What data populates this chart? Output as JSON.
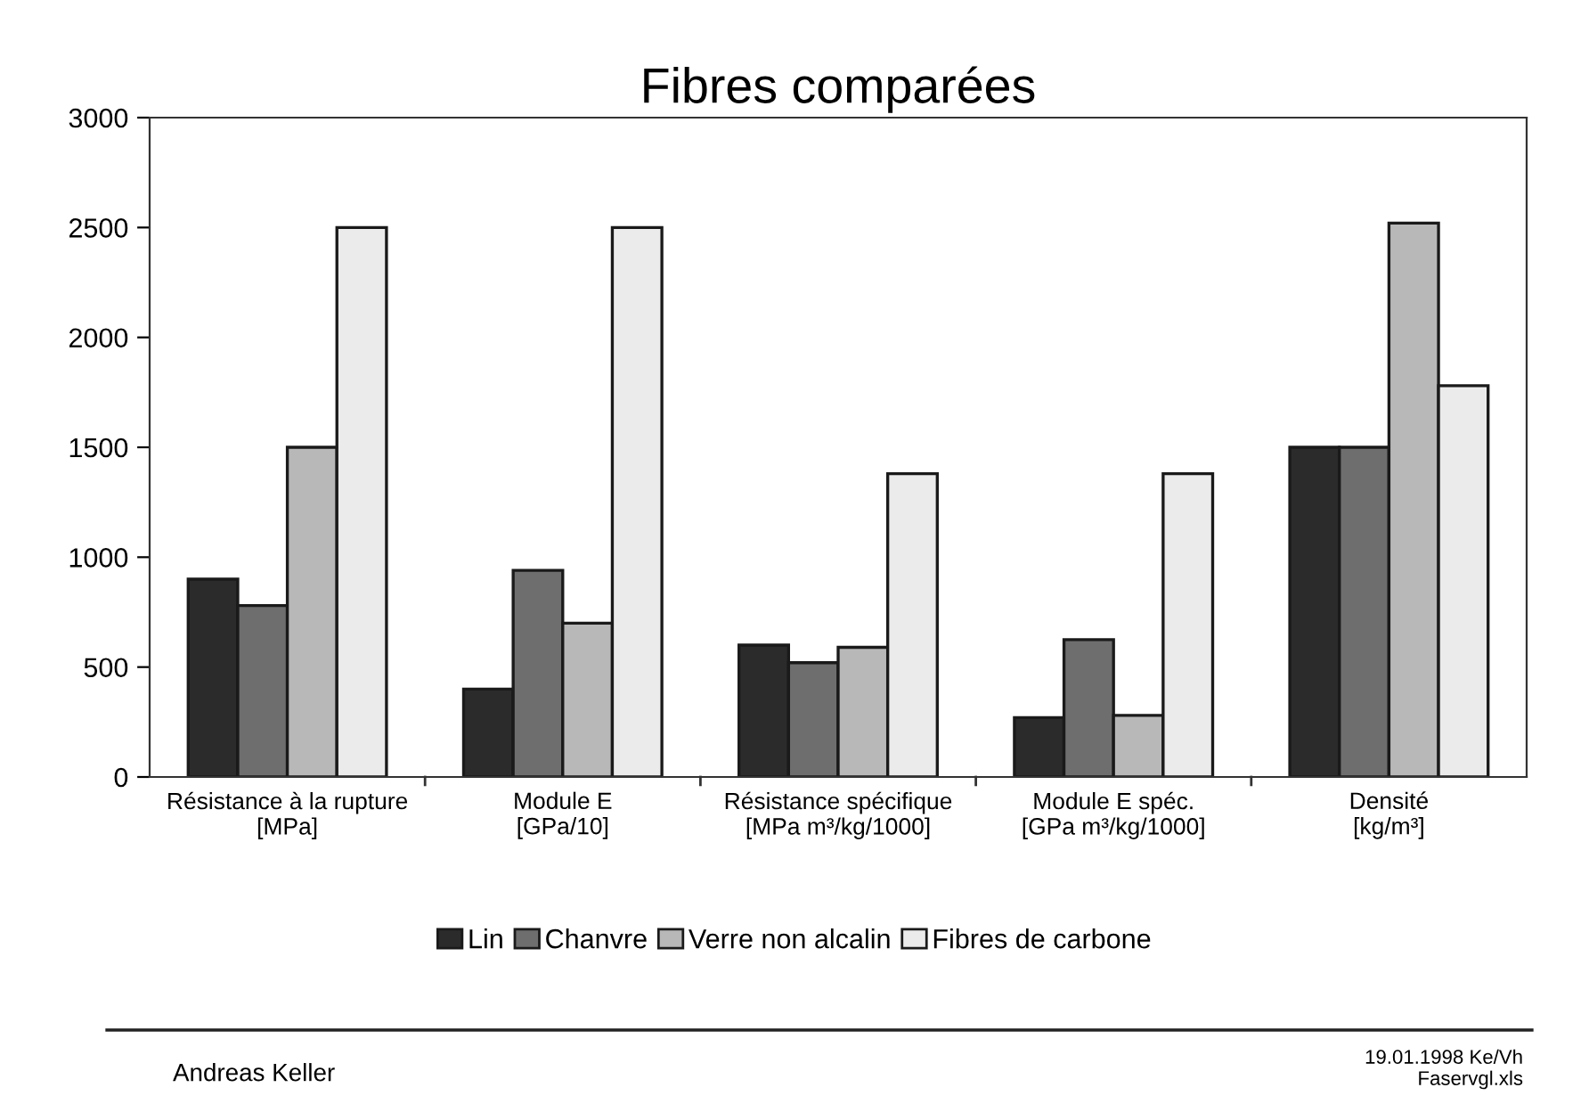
{
  "chart_data": {
    "type": "bar",
    "title": "Fibres comparées",
    "categories": [
      "Résistance à la rupture\n[MPa]",
      "Module E\n[GPa/10]",
      "Résistance spécifique\n[MPa m³/kg/1000]",
      "Module E spéc.\n[GPa m³/kg/1000]",
      "Densité\n[kg/m³]"
    ],
    "series": [
      {
        "name": "Lin",
        "color": "#2b2b2b",
        "values": [
          900,
          400,
          600,
          270,
          1500
        ]
      },
      {
        "name": "Chanvre",
        "color": "#6e6e6e",
        "values": [
          780,
          940,
          520,
          625,
          1500
        ]
      },
      {
        "name": "Verre non alcalin",
        "color": "#b8b8b8",
        "values": [
          1500,
          700,
          590,
          280,
          2520
        ]
      },
      {
        "name": "Fibres de carbone",
        "color": "#ebebeb",
        "values": [
          2500,
          2500,
          1380,
          1380,
          1780
        ]
      }
    ],
    "ylim": [
      0,
      3000
    ],
    "yticks": [
      0,
      500,
      1000,
      1500,
      2000,
      2500,
      3000
    ],
    "grid": false,
    "legend": "bottom",
    "annotations": [
      "Andreas Keller",
      "19.01.1998 Ke/Vh\nFaservgl.xls"
    ]
  }
}
